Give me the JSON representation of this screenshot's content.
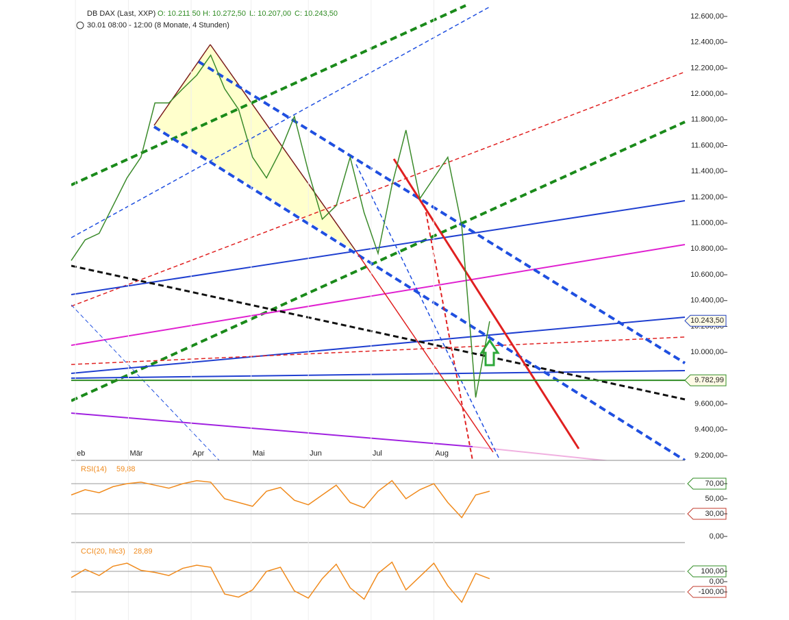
{
  "chart_data": [
    {
      "type": "line",
      "title": "DB DAX (Last, XXP)",
      "ohlc": [
        "O: 10.211,50",
        "H: 10.272,50",
        "L: 10.207,00",
        "C: 10.243,50"
      ],
      "subtitle": "30.01 08:00 - 12:00 (8 Monate, 4 Stunden)",
      "x": [
        0,
        1,
        2,
        3,
        4,
        5,
        6,
        7,
        8,
        9,
        10,
        11,
        12,
        13,
        14,
        15,
        16,
        17,
        18,
        19,
        20,
        21,
        22,
        23,
        24,
        25,
        26,
        27,
        28,
        29,
        30
      ],
      "values": [
        10710,
        10870,
        10920,
        11135,
        11350,
        11510,
        11930,
        11930,
        12040,
        12145,
        12300,
        12040,
        11880,
        11510,
        11350,
        11560,
        11825,
        11400,
        11030,
        11135,
        11510,
        11080,
        10765,
        11295,
        11720,
        11190,
        11350,
        11510,
        10980,
        9650,
        10240
      ],
      "color": "#3a8a2a",
      "xlim": [
        0,
        44
      ],
      "xticks": [
        {
          "value": 0.3,
          "label": "eb"
        },
        {
          "value": 4.1,
          "label": "Mär"
        },
        {
          "value": 8.6,
          "label": "Apr"
        },
        {
          "value": 12.9,
          "label": "Mai"
        },
        {
          "value": 17.0,
          "label": "Jun"
        },
        {
          "value": 21.5,
          "label": "Jul"
        },
        {
          "value": 26.0,
          "label": "Aug"
        }
      ],
      "ylim": [
        9163,
        12727
      ],
      "yticks": [
        {
          "value": 9200,
          "label": "9.200,00"
        },
        {
          "value": 9400,
          "label": "9.400,00"
        },
        {
          "value": 9600,
          "label": "9.600,00"
        },
        {
          "value": 10000,
          "label": "10.000,00"
        },
        {
          "value": 10200,
          "label": "10.200,00"
        },
        {
          "value": 10400,
          "label": "10.400,00"
        },
        {
          "value": 10600,
          "label": "10.600,00"
        },
        {
          "value": 10800,
          "label": "10.800,00"
        },
        {
          "value": 11000,
          "label": "11.000,00"
        },
        {
          "value": 11200,
          "label": "11.200,00"
        },
        {
          "value": 11400,
          "label": "11.400,00"
        },
        {
          "value": 11600,
          "label": "11.600,00"
        },
        {
          "value": 11800,
          "label": "11.800,00"
        },
        {
          "value": 12000,
          "label": "12.000,00"
        },
        {
          "value": 12200,
          "label": "12.200,00"
        },
        {
          "value": 12400,
          "label": "12.400,00"
        },
        {
          "value": 12600,
          "label": "12.600,00"
        }
      ],
      "markers": [
        {
          "value": 10243.5,
          "label": "10.243,50",
          "color": "#1f3fbf"
        },
        {
          "value": 9782.99,
          "label": "9.782,99",
          "color": "#2e8b22",
          "line": true
        }
      ]
    },
    {
      "type": "line",
      "title": "RSI(14)",
      "last": {
        "value": 59.88,
        "label": "59,88"
      },
      "x": [
        0,
        1,
        2,
        3,
        4,
        5,
        6,
        7,
        8,
        9,
        10,
        11,
        12,
        13,
        14,
        15,
        16,
        17,
        18,
        19,
        20,
        21,
        22,
        23,
        24,
        25,
        26,
        27,
        28,
        29,
        30
      ],
      "values": [
        55,
        62,
        58,
        66,
        70,
        72,
        68,
        64,
        70,
        74,
        72,
        50,
        45,
        40,
        60,
        65,
        48,
        42,
        55,
        68,
        45,
        38,
        60,
        74,
        50,
        62,
        70,
        45,
        25,
        55,
        60
      ],
      "color": "#f08a1c",
      "xlim": [
        0,
        44
      ],
      "ylim": [
        0,
        100
      ],
      "yticks": [
        {
          "value": 0,
          "label": "0,00"
        },
        {
          "value": 30,
          "label": "30,00"
        },
        {
          "value": 50,
          "label": "50,00"
        },
        {
          "value": 70,
          "label": "70,00"
        }
      ],
      "levels": [
        {
          "value": 70,
          "color": "#2e8b22"
        },
        {
          "value": 30,
          "color": "#c0392b"
        }
      ]
    },
    {
      "type": "line",
      "title": "CCI(20, hlc3)",
      "last": {
        "value": 28.89,
        "label": "28,89"
      },
      "x": [
        0,
        1,
        2,
        3,
        4,
        5,
        6,
        7,
        8,
        9,
        10,
        11,
        12,
        13,
        14,
        15,
        16,
        17,
        18,
        19,
        20,
        21,
        22,
        23,
        24,
        25,
        26,
        27,
        28,
        29,
        30
      ],
      "values": [
        40,
        120,
        60,
        150,
        180,
        110,
        90,
        60,
        130,
        160,
        140,
        -120,
        -150,
        -80,
        100,
        140,
        -90,
        -160,
        30,
        170,
        -60,
        -170,
        80,
        190,
        -80,
        50,
        180,
        -40,
        -200,
        80,
        29
      ],
      "color": "#f08a1c",
      "xlim": [
        0,
        44
      ],
      "ylim": [
        -373,
        347
      ],
      "yticks": [
        {
          "value": -100,
          "label": "-100,00"
        },
        {
          "value": 0,
          "label": "0,00"
        },
        {
          "value": 100,
          "label": "100,00"
        }
      ],
      "levels": [
        {
          "value": 100,
          "color": "#2e8b22"
        },
        {
          "value": -100,
          "color": "#c0392b"
        }
      ]
    }
  ]
}
